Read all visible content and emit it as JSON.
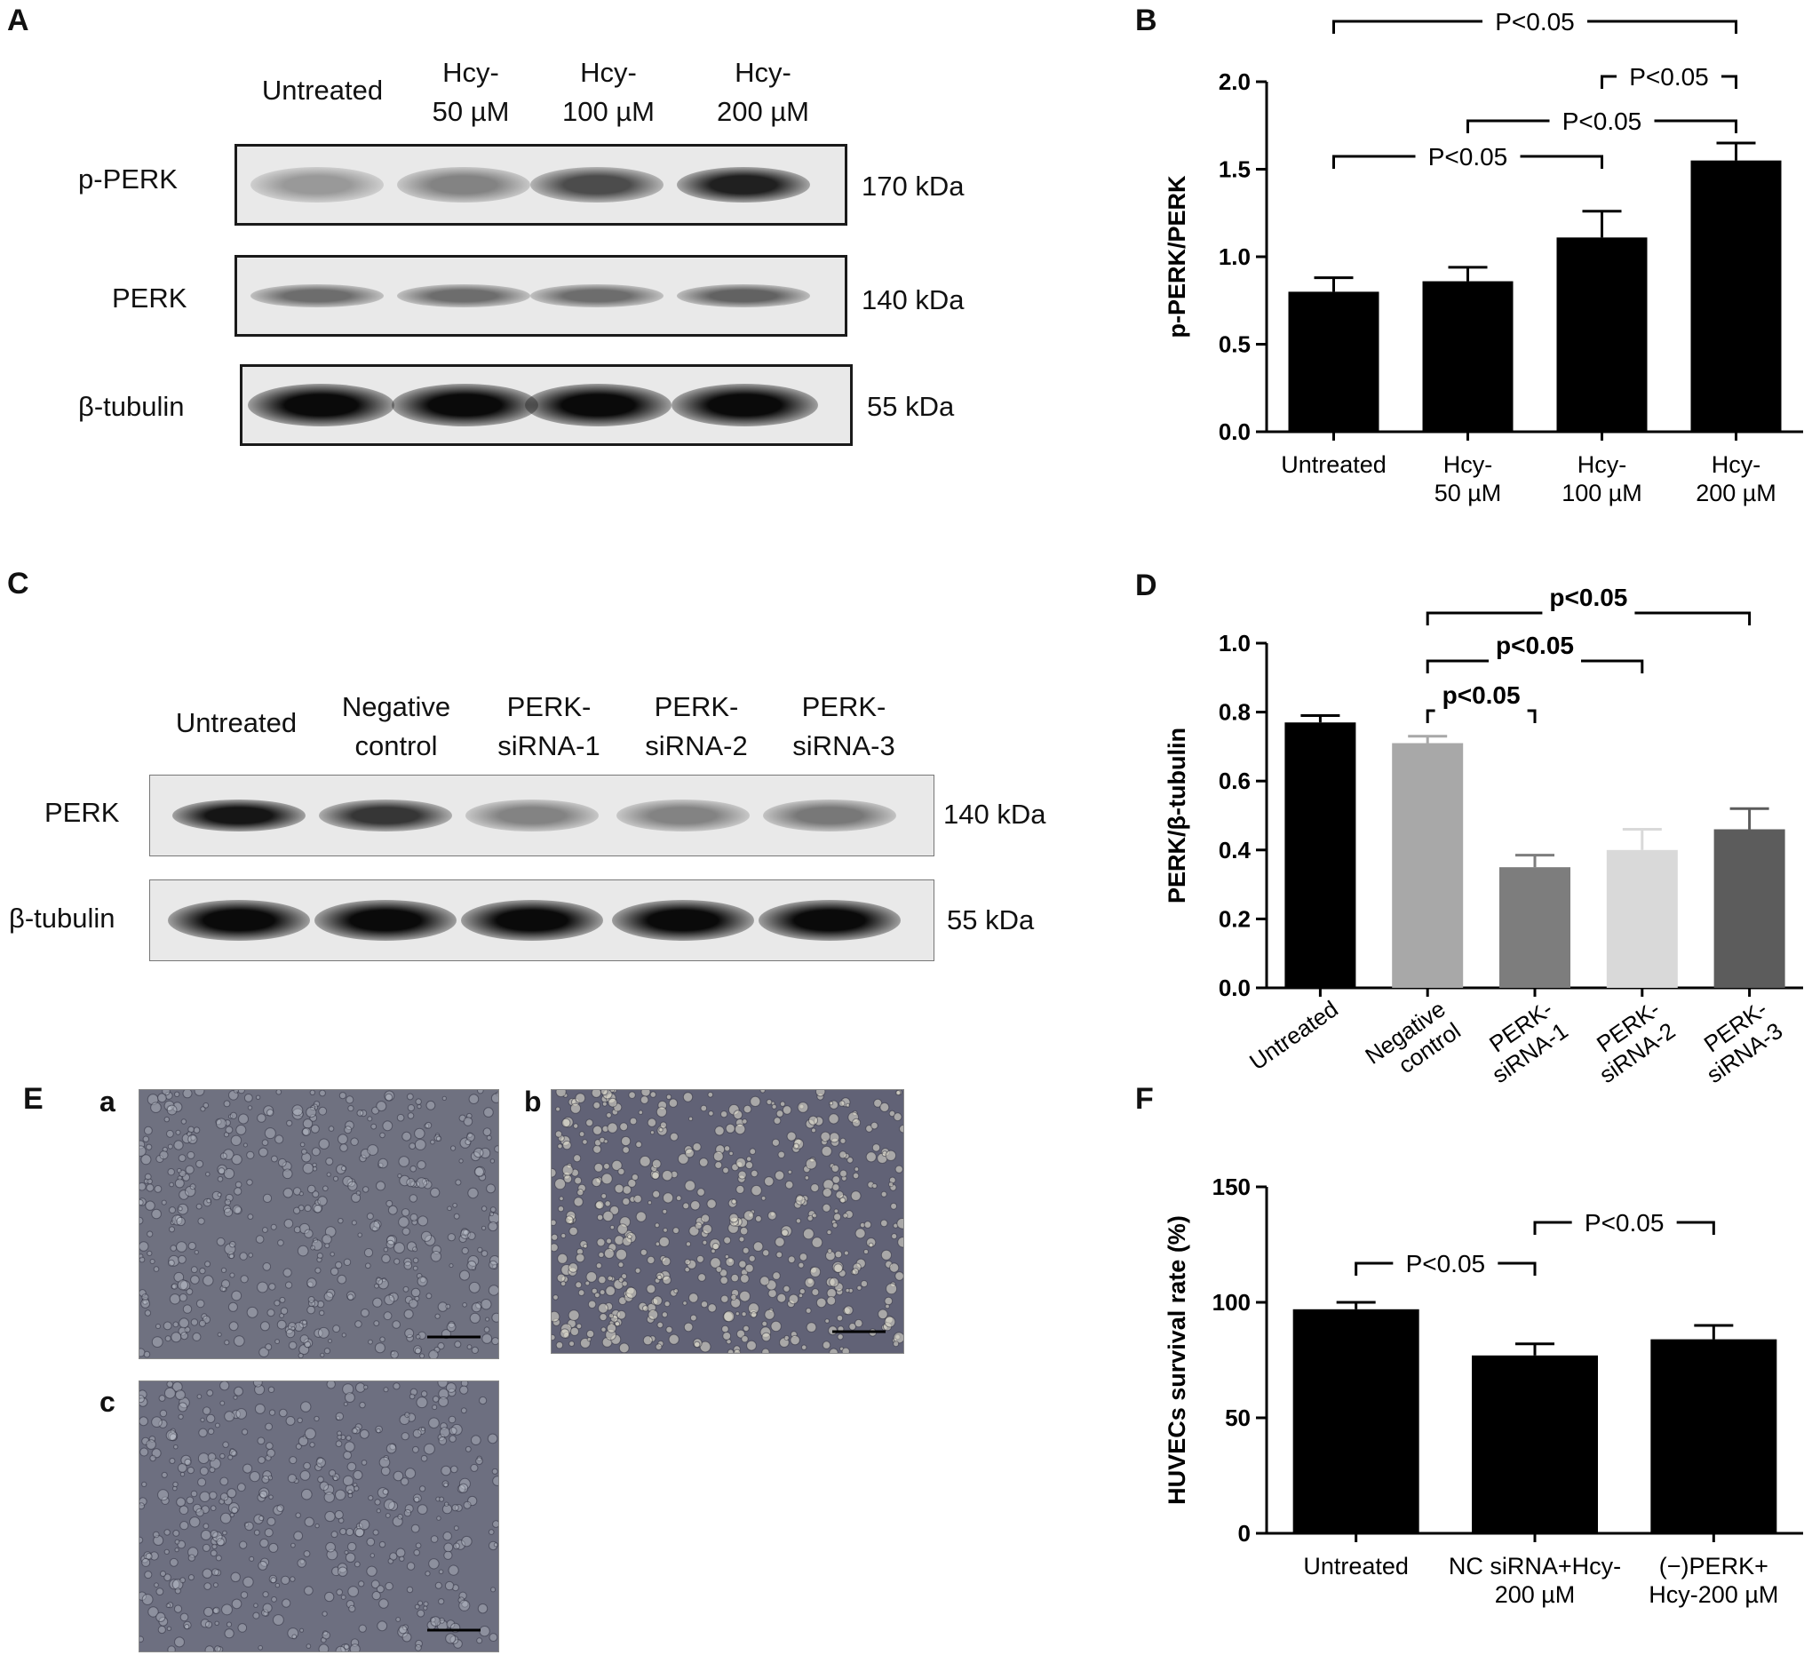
{
  "figure": {
    "panels": {
      "A": "A",
      "B": "B",
      "C": "C",
      "D": "D",
      "E": "E",
      "F": "F"
    },
    "micro_sublabels": {
      "a": "a",
      "b": "b",
      "c": "c"
    }
  },
  "panel_a": {
    "lanes": [
      {
        "line1": "Untreated",
        "line2": ""
      },
      {
        "line1": "Hcy-",
        "line2": "50 µM"
      },
      {
        "line1": "Hcy-",
        "line2": "100 µM"
      },
      {
        "line1": "Hcy-",
        "line2": "200 µM"
      }
    ],
    "rows": [
      {
        "label": "p-PERK",
        "kda": "170 kDa",
        "intensity": [
          0.35,
          0.45,
          0.7,
          0.9
        ]
      },
      {
        "label": "PERK",
        "kda": "140 kDa",
        "intensity": [
          0.55,
          0.55,
          0.55,
          0.6
        ]
      },
      {
        "label": "β-tubulin",
        "kda": "55 kDa",
        "intensity": [
          1,
          1,
          1,
          1
        ]
      }
    ]
  },
  "panel_c": {
    "lanes": [
      {
        "line1": "Untreated",
        "line2": ""
      },
      {
        "line1": "Negative",
        "line2": "control"
      },
      {
        "line1": "PERK-",
        "line2": "siRNA-1"
      },
      {
        "line1": "PERK-",
        "line2": "siRNA-2"
      },
      {
        "line1": "PERK-",
        "line2": "siRNA-3"
      }
    ],
    "rows": [
      {
        "label": "PERK",
        "kda": "140 kDa",
        "intensity": [
          0.95,
          0.8,
          0.45,
          0.45,
          0.5
        ]
      },
      {
        "label": "β-tubulin",
        "kda": "55 kDa",
        "intensity": [
          1,
          1,
          1,
          1,
          1
        ]
      }
    ]
  },
  "chart_data": [
    {
      "id": "B",
      "type": "bar",
      "categories": [
        [
          "Untreated"
        ],
        [
          "Hcy-",
          "50 µM"
        ],
        [
          "Hcy-",
          "100 µM"
        ],
        [
          "Hcy-",
          "200 µM"
        ]
      ],
      "values": [
        0.8,
        0.86,
        1.11,
        1.55
      ],
      "errors": [
        0.08,
        0.08,
        0.15,
        0.1
      ],
      "colors": [
        "#000000",
        "#000000",
        "#000000",
        "#000000"
      ],
      "ylabel": "p-PERK/PERK",
      "ylim": [
        0,
        2.0
      ],
      "ticks": [
        "0.0",
        "0.5",
        "1.0",
        "1.5",
        "2.0"
      ],
      "label_rotate": false,
      "significance": [
        {
          "from": 0,
          "to": 2,
          "label": "P<0.05",
          "bold": false
        },
        {
          "from": 1,
          "to": 3,
          "label": "P<0.05",
          "bold": false
        },
        {
          "from": 2,
          "to": 3,
          "label": "P<0.05",
          "bold": false
        },
        {
          "from": 0,
          "to": 3,
          "label": "P<0.05",
          "bold": false
        }
      ]
    },
    {
      "id": "D",
      "type": "bar",
      "categories": [
        [
          "Untreated"
        ],
        [
          "Negative",
          "control"
        ],
        [
          "PERK-",
          "siRNA-1"
        ],
        [
          "PERK-",
          "siRNA-2"
        ],
        [
          "PERK-",
          "siRNA-3"
        ]
      ],
      "values": [
        0.77,
        0.71,
        0.35,
        0.4,
        0.46
      ],
      "errors": [
        0.02,
        0.02,
        0.035,
        0.06,
        0.06
      ],
      "colors": [
        "#000000",
        "#a8a8a8",
        "#7d7d7d",
        "#d9d9d9",
        "#5c5c5c"
      ],
      "ylabel": "PERK/β-tubulin",
      "ylim": [
        0,
        1.0
      ],
      "ticks": [
        "0.0",
        "0.2",
        "0.4",
        "0.6",
        "0.8",
        "1.0"
      ],
      "label_rotate": true,
      "significance": [
        {
          "from": 1,
          "to": 2,
          "label": "p<0.05",
          "bold": true
        },
        {
          "from": 1,
          "to": 3,
          "label": "p<0.05",
          "bold": true
        },
        {
          "from": 1,
          "to": 4,
          "label": "p<0.05",
          "bold": true
        }
      ]
    },
    {
      "id": "F",
      "type": "bar",
      "categories": [
        [
          "Untreated"
        ],
        [
          "NC siRNA+Hcy-",
          "200 µM"
        ],
        [
          "(−)PERK+",
          "Hcy-200 µM"
        ]
      ],
      "values": [
        97,
        77,
        84
      ],
      "errors": [
        3,
        5,
        6
      ],
      "colors": [
        "#000000",
        "#000000",
        "#000000"
      ],
      "ylabel": "HUVECs survival rate (%)",
      "ylim": [
        0,
        150
      ],
      "ticks": [
        "0",
        "50",
        "100",
        "150"
      ],
      "label_rotate": false,
      "significance": [
        {
          "from": 0,
          "to": 1,
          "label": "P<0.05",
          "bold": false
        },
        {
          "from": 1,
          "to": 2,
          "label": "P<0.05",
          "bold": false
        }
      ]
    }
  ]
}
